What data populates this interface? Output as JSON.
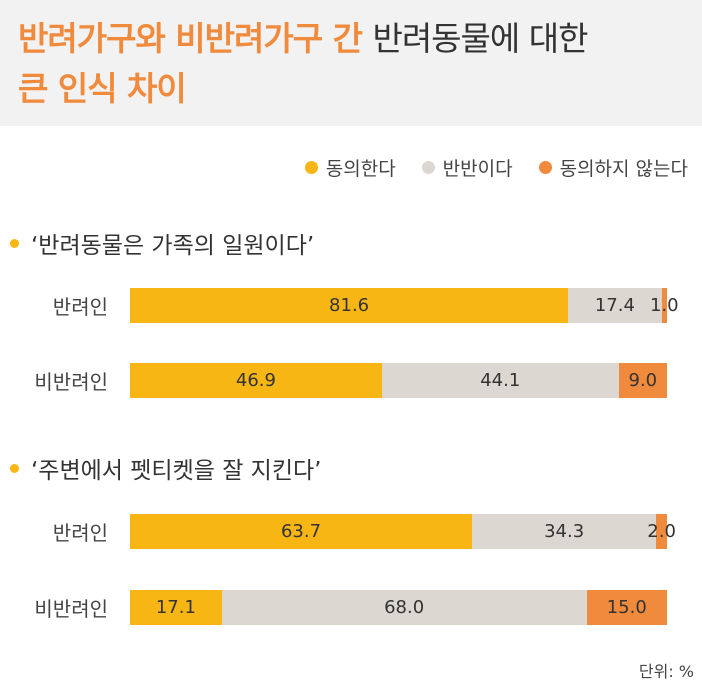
{
  "title": {
    "line1_orange": "반려가구와 비반려가구 간",
    "line1_dark": "반려동물에 대한",
    "line2_orange": "큰 인식 차이"
  },
  "legend": [
    {
      "label": "동의한다",
      "color": "#f7b614"
    },
    {
      "label": "반반이다",
      "color": "#dcd7d0"
    },
    {
      "label": "동의하지 않는다",
      "color": "#f08a3c"
    }
  ],
  "unit": "단위: %",
  "chart_data": {
    "type": "bar",
    "stacked": true,
    "orientation": "horizontal",
    "xlim": [
      0,
      100
    ],
    "series": [
      {
        "name": "동의한다",
        "color": "#f7b614"
      },
      {
        "name": "반반이다",
        "color": "#dcd7d0"
      },
      {
        "name": "동의하지 않는다",
        "color": "#f08a3c"
      }
    ],
    "groups": [
      {
        "title": "‘반려동물은 가족의 일원이다’",
        "rows": [
          {
            "label": "반려인",
            "values": [
              81.6,
              17.4,
              1.0
            ],
            "labels": [
              "81.6",
              "17.4",
              "1.0"
            ]
          },
          {
            "label": "비반려인",
            "values": [
              46.9,
              44.1,
              9.0
            ],
            "labels": [
              "46.9",
              "44.1",
              "9.0"
            ]
          }
        ]
      },
      {
        "title": "‘주변에서 펫티켓을 잘 지킨다’",
        "rows": [
          {
            "label": "반려인",
            "values": [
              63.7,
              34.3,
              2.0
            ],
            "labels": [
              "63.7",
              "34.3",
              "2.0"
            ]
          },
          {
            "label": "비반려인",
            "values": [
              17.1,
              68.0,
              15.0
            ],
            "labels": [
              "17.1",
              "68.0",
              "15.0"
            ]
          }
        ]
      }
    ]
  }
}
